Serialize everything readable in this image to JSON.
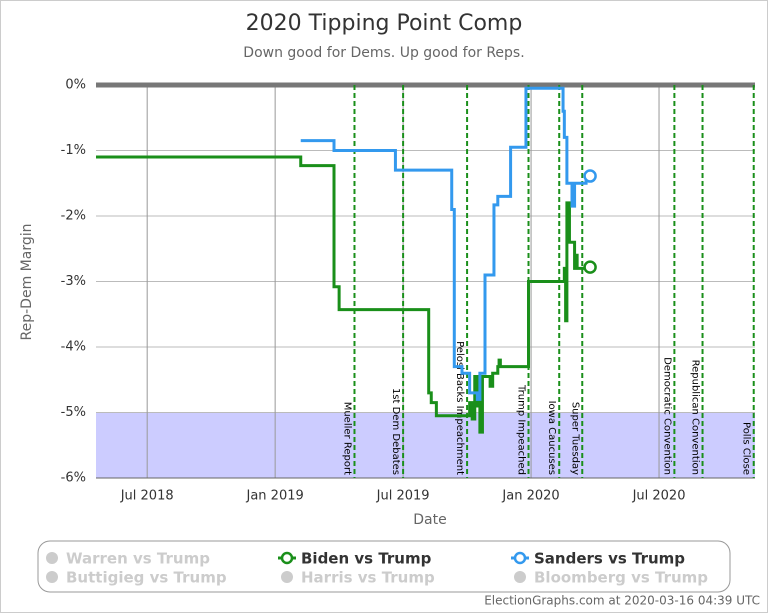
{
  "chart_data": {
    "type": "line",
    "step": true,
    "title": "2020 Tipping Point Comp",
    "subtitle": "Down good for Dems. Up good for Reps.",
    "x_label": "Date",
    "y_label": "Rep-Dem Margin",
    "footer": "ElectionGraphs.com at 2020-03-16 04:39 UTC",
    "xlim": [
      2018.3,
      2020.875
    ],
    "ylim": [
      -6,
      0
    ],
    "xticks": [
      {
        "value": 2018.5,
        "label": "Jul 2018"
      },
      {
        "value": 2019.0,
        "label": "Jan 2019"
      },
      {
        "value": 2019.5,
        "label": "Jul 2019"
      },
      {
        "value": 2020.0,
        "label": "Jan 2020"
      },
      {
        "value": 2020.5,
        "label": "Jul 2020"
      }
    ],
    "yticks": [
      {
        "value": 0,
        "label": "0%"
      },
      {
        "value": -1,
        "label": "-1%"
      },
      {
        "value": -2,
        "label": "-2%"
      },
      {
        "value": -3,
        "label": "-3%"
      },
      {
        "value": -4,
        "label": "-4%"
      },
      {
        "value": -5,
        "label": "-5%"
      },
      {
        "value": -6,
        "label": "-6%"
      }
    ],
    "grid": true,
    "band": {
      "from": -6,
      "to": -5,
      "color": "#ccccff"
    },
    "events": [
      {
        "x": 2019.31,
        "label": "Mueller Report"
      },
      {
        "x": 2019.5,
        "label": "1st Dem Debates"
      },
      {
        "x": 2019.75,
        "label": "Pelosi Backs Impeachment"
      },
      {
        "x": 2019.99,
        "label": "Trump Impeached"
      },
      {
        "x": 2020.11,
        "label": "Iowa Caucuses"
      },
      {
        "x": 2020.2,
        "label": "Super Tuesday"
      },
      {
        "x": 2020.56,
        "label": "Democratic Convention"
      },
      {
        "x": 2020.67,
        "label": "Republican Convention"
      },
      {
        "x": 2020.87,
        "label": "Polls Close"
      }
    ],
    "event_color": "#1a8f1a",
    "series": [
      {
        "name": "Biden vs Trump",
        "color": "#1a8f1a",
        "x": [
          2018.3,
          2019.1,
          2019.23,
          2019.25,
          2019.6,
          2019.61,
          2019.63,
          2019.76,
          2019.77,
          2019.78,
          2019.785,
          2019.79,
          2019.8,
          2019.81,
          2019.84,
          2019.85,
          2019.87,
          2019.875,
          2019.88,
          2019.99,
          2020.13,
          2020.135,
          2020.14,
          2020.15,
          2020.17,
          2020.175,
          2020.18,
          2020.215
        ],
        "values": [
          -1.1,
          -1.23,
          -3.08,
          -3.43,
          -4.7,
          -4.85,
          -5.05,
          -4.85,
          -5.1,
          -4.45,
          -4.9,
          -4.45,
          -5.3,
          -4.45,
          -4.6,
          -4.4,
          -4.3,
          -4.2,
          -4.3,
          -3.0,
          -2.8,
          -3.6,
          -1.8,
          -2.4,
          -2.8,
          -2.6,
          -2.8,
          -2.78
        ]
      },
      {
        "name": "Sanders vs Trump",
        "color": "#3399ee",
        "x": [
          2019.1,
          2019.23,
          2019.47,
          2019.69,
          2019.7,
          2019.73,
          2019.76,
          2019.79,
          2019.8,
          2019.82,
          2019.855,
          2019.87,
          2019.92,
          2019.98,
          2020.125,
          2020.13,
          2020.14,
          2020.16,
          2020.17,
          2020.215
        ],
        "values": [
          -0.85,
          -1.0,
          -1.3,
          -1.9,
          -4.3,
          -4.4,
          -4.7,
          -4.8,
          -4.4,
          -2.9,
          -1.83,
          -1.7,
          -0.95,
          -0.05,
          -0.4,
          -0.8,
          -1.5,
          -1.85,
          -1.5,
          -1.39
        ]
      }
    ],
    "inactive_legend": [
      "Warren vs Trump",
      "Buttigieg vs Trump",
      "Harris vs Trump",
      "Bloomberg vs Trump"
    ],
    "inactive_color": "#cccccc"
  }
}
